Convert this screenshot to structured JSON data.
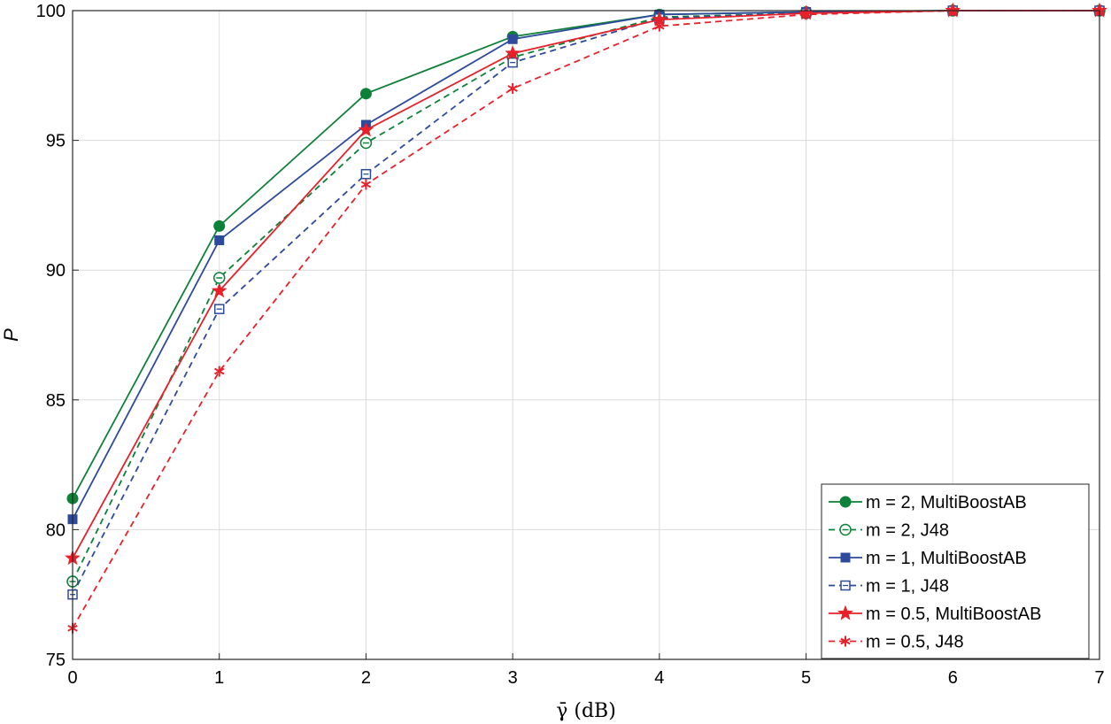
{
  "chart_data": {
    "type": "line",
    "title": "",
    "xlabel": "γ̄ (dB)",
    "ylabel": "P",
    "xlim": [
      0,
      7
    ],
    "ylim": [
      75,
      100
    ],
    "xticks": [
      "0",
      "1",
      "2",
      "3",
      "4",
      "5",
      "6",
      "7"
    ],
    "yticks": [
      "75",
      "80",
      "85",
      "90",
      "95",
      "100"
    ],
    "grid": true,
    "legend_position": "bottom-right",
    "x": [
      0,
      1,
      2,
      3,
      4,
      5,
      6,
      7
    ],
    "series": [
      {
        "name": "m = 2, MultiBoostAB",
        "color": "#0e8139",
        "dash": "solid",
        "marker": "filled-circle",
        "values": [
          81.2,
          91.7,
          96.8,
          99.0,
          99.85,
          99.95,
          100.0,
          100.0
        ]
      },
      {
        "name": "m = 2, J48",
        "color": "#0e8139",
        "dash": "dashed",
        "marker": "open-circle",
        "values": [
          78.0,
          89.7,
          94.9,
          98.2,
          99.75,
          99.9,
          100.0,
          100.0
        ]
      },
      {
        "name": "m = 1, MultiBoostAB",
        "color": "#2e4a9c",
        "dash": "solid",
        "marker": "filled-square",
        "values": [
          80.4,
          91.15,
          95.6,
          98.9,
          99.85,
          99.95,
          100.0,
          100.0
        ]
      },
      {
        "name": "m = 1, J48",
        "color": "#2e4a9c",
        "dash": "dashed",
        "marker": "open-square",
        "values": [
          77.5,
          88.5,
          93.7,
          98.0,
          99.7,
          99.9,
          100.0,
          100.0
        ]
      },
      {
        "name": "m = 0.5, MultiBoostAB",
        "color": "#e8202a",
        "dash": "solid",
        "marker": "filled-star",
        "values": [
          78.9,
          89.2,
          95.4,
          98.35,
          99.65,
          99.9,
          100.0,
          100.0
        ]
      },
      {
        "name": "m = 0.5, J48",
        "color": "#e8202a",
        "dash": "dashed",
        "marker": "asterisk",
        "values": [
          76.2,
          86.1,
          93.3,
          97.0,
          99.4,
          99.85,
          100.0,
          100.0
        ]
      }
    ]
  }
}
